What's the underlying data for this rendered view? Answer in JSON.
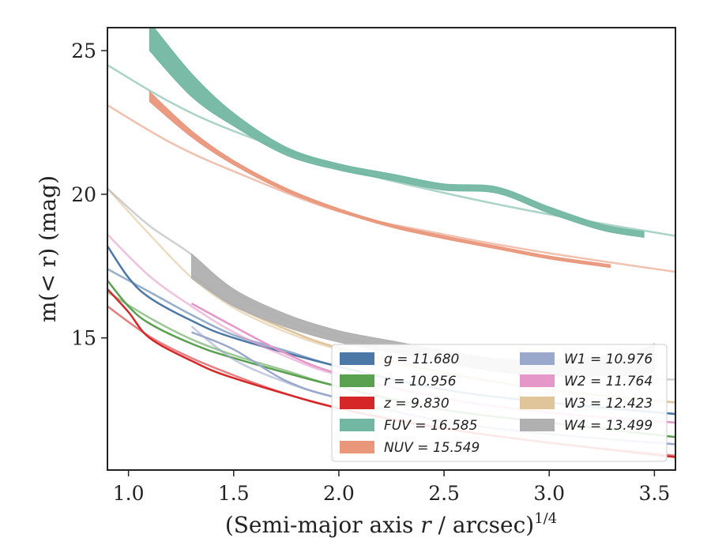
{
  "chart_data": {
    "type": "line",
    "xlabel_main": "(Semi-major axis ",
    "xlabel_var": "r",
    "xlabel_tail": " / arcsec)",
    "xlabel_sup": "1/4",
    "ylabel": "m(< r) (mag)",
    "xlim": [
      0.9,
      3.6
    ],
    "ylim": [
      25.8,
      10.4
    ],
    "xticks": [
      "1.0",
      "1.5",
      "2.0",
      "2.5",
      "3.0",
      "3.5"
    ],
    "xtick_values": [
      1.0,
      1.5,
      2.0,
      2.5,
      3.0,
      3.5
    ],
    "yticks": [
      "15",
      "20",
      "25"
    ],
    "ytick_values": [
      15,
      20,
      25
    ],
    "legend_position": "lower-right",
    "series": [
      {
        "name": "g = 11.680",
        "color": "#4c78a8",
        "model_x": [
          0.9,
          1.1,
          1.3,
          1.5,
          1.75,
          2.0,
          2.5,
          3.0,
          3.6
        ],
        "model_y": [
          17.4,
          16.6,
          15.8,
          15.1,
          14.55,
          14.0,
          13.2,
          12.75,
          12.35
        ],
        "data_x": [
          0.9,
          1.0,
          1.1,
          1.3,
          1.5,
          2.0,
          2.5,
          3.0,
          3.6
        ],
        "data_y": [
          18.2,
          17.1,
          16.4,
          15.6,
          15.0,
          14.0,
          13.2,
          12.75,
          12.35
        ]
      },
      {
        "name": "r = 10.956",
        "color": "#59a14f",
        "model_x": [
          0.9,
          1.1,
          1.3,
          1.5,
          1.75,
          2.0,
          2.5,
          3.0,
          3.6
        ],
        "model_y": [
          16.6,
          15.7,
          14.95,
          14.4,
          13.85,
          13.3,
          12.5,
          12.05,
          11.55
        ],
        "data_x": [
          0.9,
          1.0,
          1.1,
          1.3,
          1.5,
          2.0,
          2.5,
          3.0,
          3.6
        ],
        "data_y": [
          17.0,
          16.1,
          15.5,
          14.8,
          14.3,
          13.3,
          12.5,
          12.05,
          11.55
        ]
      },
      {
        "name": "z = 9.830",
        "color": "#d62728",
        "model_x": [
          0.9,
          1.1,
          1.3,
          1.5,
          1.75,
          2.0,
          2.5,
          3.0,
          3.6
        ],
        "model_y": [
          16.1,
          15.05,
          14.3,
          13.7,
          13.05,
          12.55,
          11.85,
          11.35,
          10.9
        ],
        "data_x": [
          0.9,
          1.0,
          1.1,
          1.3,
          1.5,
          2.0,
          2.5,
          3.0,
          3.6
        ],
        "data_y": [
          16.7,
          15.9,
          15.0,
          14.2,
          13.6,
          12.55,
          11.85,
          11.35,
          10.85
        ]
      },
      {
        "name": "FUV = 16.585",
        "color": "#72b7a1",
        "model_x": [
          0.9,
          1.2,
          1.5,
          2.0,
          2.5,
          3.0,
          3.6
        ],
        "model_y": [
          24.5,
          23.2,
          22.2,
          20.95,
          20.05,
          19.3,
          18.55
        ],
        "data_x": [
          1.1,
          1.3,
          1.5,
          1.75,
          2.0,
          2.25,
          2.5,
          2.75,
          3.0,
          3.25,
          3.45
        ],
        "data_y": [
          25.5,
          23.8,
          22.6,
          21.5,
          20.95,
          20.6,
          20.25,
          20.15,
          19.45,
          18.85,
          18.6
        ],
        "data_width": [
          1.0,
          0.8,
          0.45,
          0.28,
          0.22,
          0.22,
          0.22,
          0.22,
          0.22,
          0.2,
          0.2
        ]
      },
      {
        "name": "NUV = 15.549",
        "color": "#e9967a",
        "model_x": [
          0.9,
          1.2,
          1.5,
          2.0,
          2.5,
          3.0,
          3.6
        ],
        "model_y": [
          23.1,
          21.8,
          20.8,
          19.4,
          18.6,
          17.95,
          17.3
        ],
        "data_x": [
          1.1,
          1.3,
          1.5,
          1.75,
          2.0,
          2.25,
          2.5,
          2.75,
          3.0,
          3.29
        ],
        "data_y": [
          23.4,
          22.1,
          21.1,
          20.15,
          19.45,
          18.9,
          18.5,
          18.15,
          17.8,
          17.5
        ],
        "data_width": [
          0.35,
          0.22,
          0.15,
          0.12,
          0.1,
          0.1,
          0.1,
          0.1,
          0.1,
          0.1
        ]
      },
      {
        "name": "W1 = 10.976",
        "color": "#9aa8cc",
        "model_x": [
          1.3,
          1.5,
          1.75,
          2.0,
          2.5,
          3.0,
          3.6
        ],
        "model_y": [
          15.4,
          14.25,
          13.45,
          12.9,
          12.1,
          11.65,
          11.3
        ],
        "data_x": [
          1.3,
          1.5,
          1.75,
          2.0,
          2.5,
          3.0,
          3.6
        ],
        "data_y": [
          15.2,
          14.6,
          13.5,
          12.9,
          12.1,
          11.65,
          11.3
        ]
      },
      {
        "name": "W2 = 11.764",
        "color": "#e497c8",
        "model_x": [
          0.9,
          1.1,
          1.3,
          1.5,
          1.75,
          2.0,
          2.5,
          3.0,
          3.6
        ],
        "model_y": [
          18.6,
          17.15,
          16.1,
          15.2,
          14.35,
          13.7,
          12.9,
          12.4,
          12.05
        ],
        "data_x": [
          1.3,
          1.5,
          1.75,
          2.0,
          2.5,
          3.0,
          3.6
        ],
        "data_y": [
          16.2,
          15.4,
          14.45,
          13.75,
          12.9,
          12.4,
          12.05
        ]
      },
      {
        "name": "W3 = 12.423",
        "color": "#e0c49a",
        "model_x": [
          0.9,
          1.1,
          1.3,
          1.5,
          1.75,
          2.0,
          2.5,
          3.0,
          3.6
        ],
        "model_y": [
          20.2,
          18.6,
          17.1,
          16.05,
          15.2,
          14.6,
          13.75,
          13.2,
          12.75
        ],
        "data_x": [
          1.3,
          1.5,
          1.75,
          2.0,
          2.5,
          3.0,
          3.6
        ],
        "data_y": [
          17.2,
          16.15,
          15.3,
          14.65,
          13.8,
          13.2,
          12.75
        ]
      },
      {
        "name": "W4 = 13.499",
        "color": "#b0b0b0",
        "model_x": [
          0.9,
          1.1,
          1.3,
          1.5,
          1.75,
          2.0,
          2.5,
          3.0,
          3.6
        ],
        "model_y": [
          20.2,
          18.9,
          17.9,
          16.6,
          15.6,
          15.05,
          14.25,
          13.7,
          13.55
        ],
        "data_x": [
          1.3,
          1.5,
          1.75,
          2.0,
          2.25,
          2.5,
          2.75,
          3.0,
          3.2,
          3.4,
          3.5
        ],
        "data_y": [
          17.5,
          16.4,
          15.6,
          15.05,
          14.7,
          14.35,
          14.05,
          13.95,
          14.0,
          14.1,
          14.3
        ],
        "data_width": [
          0.85,
          0.6,
          0.45,
          0.4,
          0.4,
          0.4,
          0.45,
          0.55,
          0.65,
          0.8,
          1.0
        ]
      }
    ]
  }
}
